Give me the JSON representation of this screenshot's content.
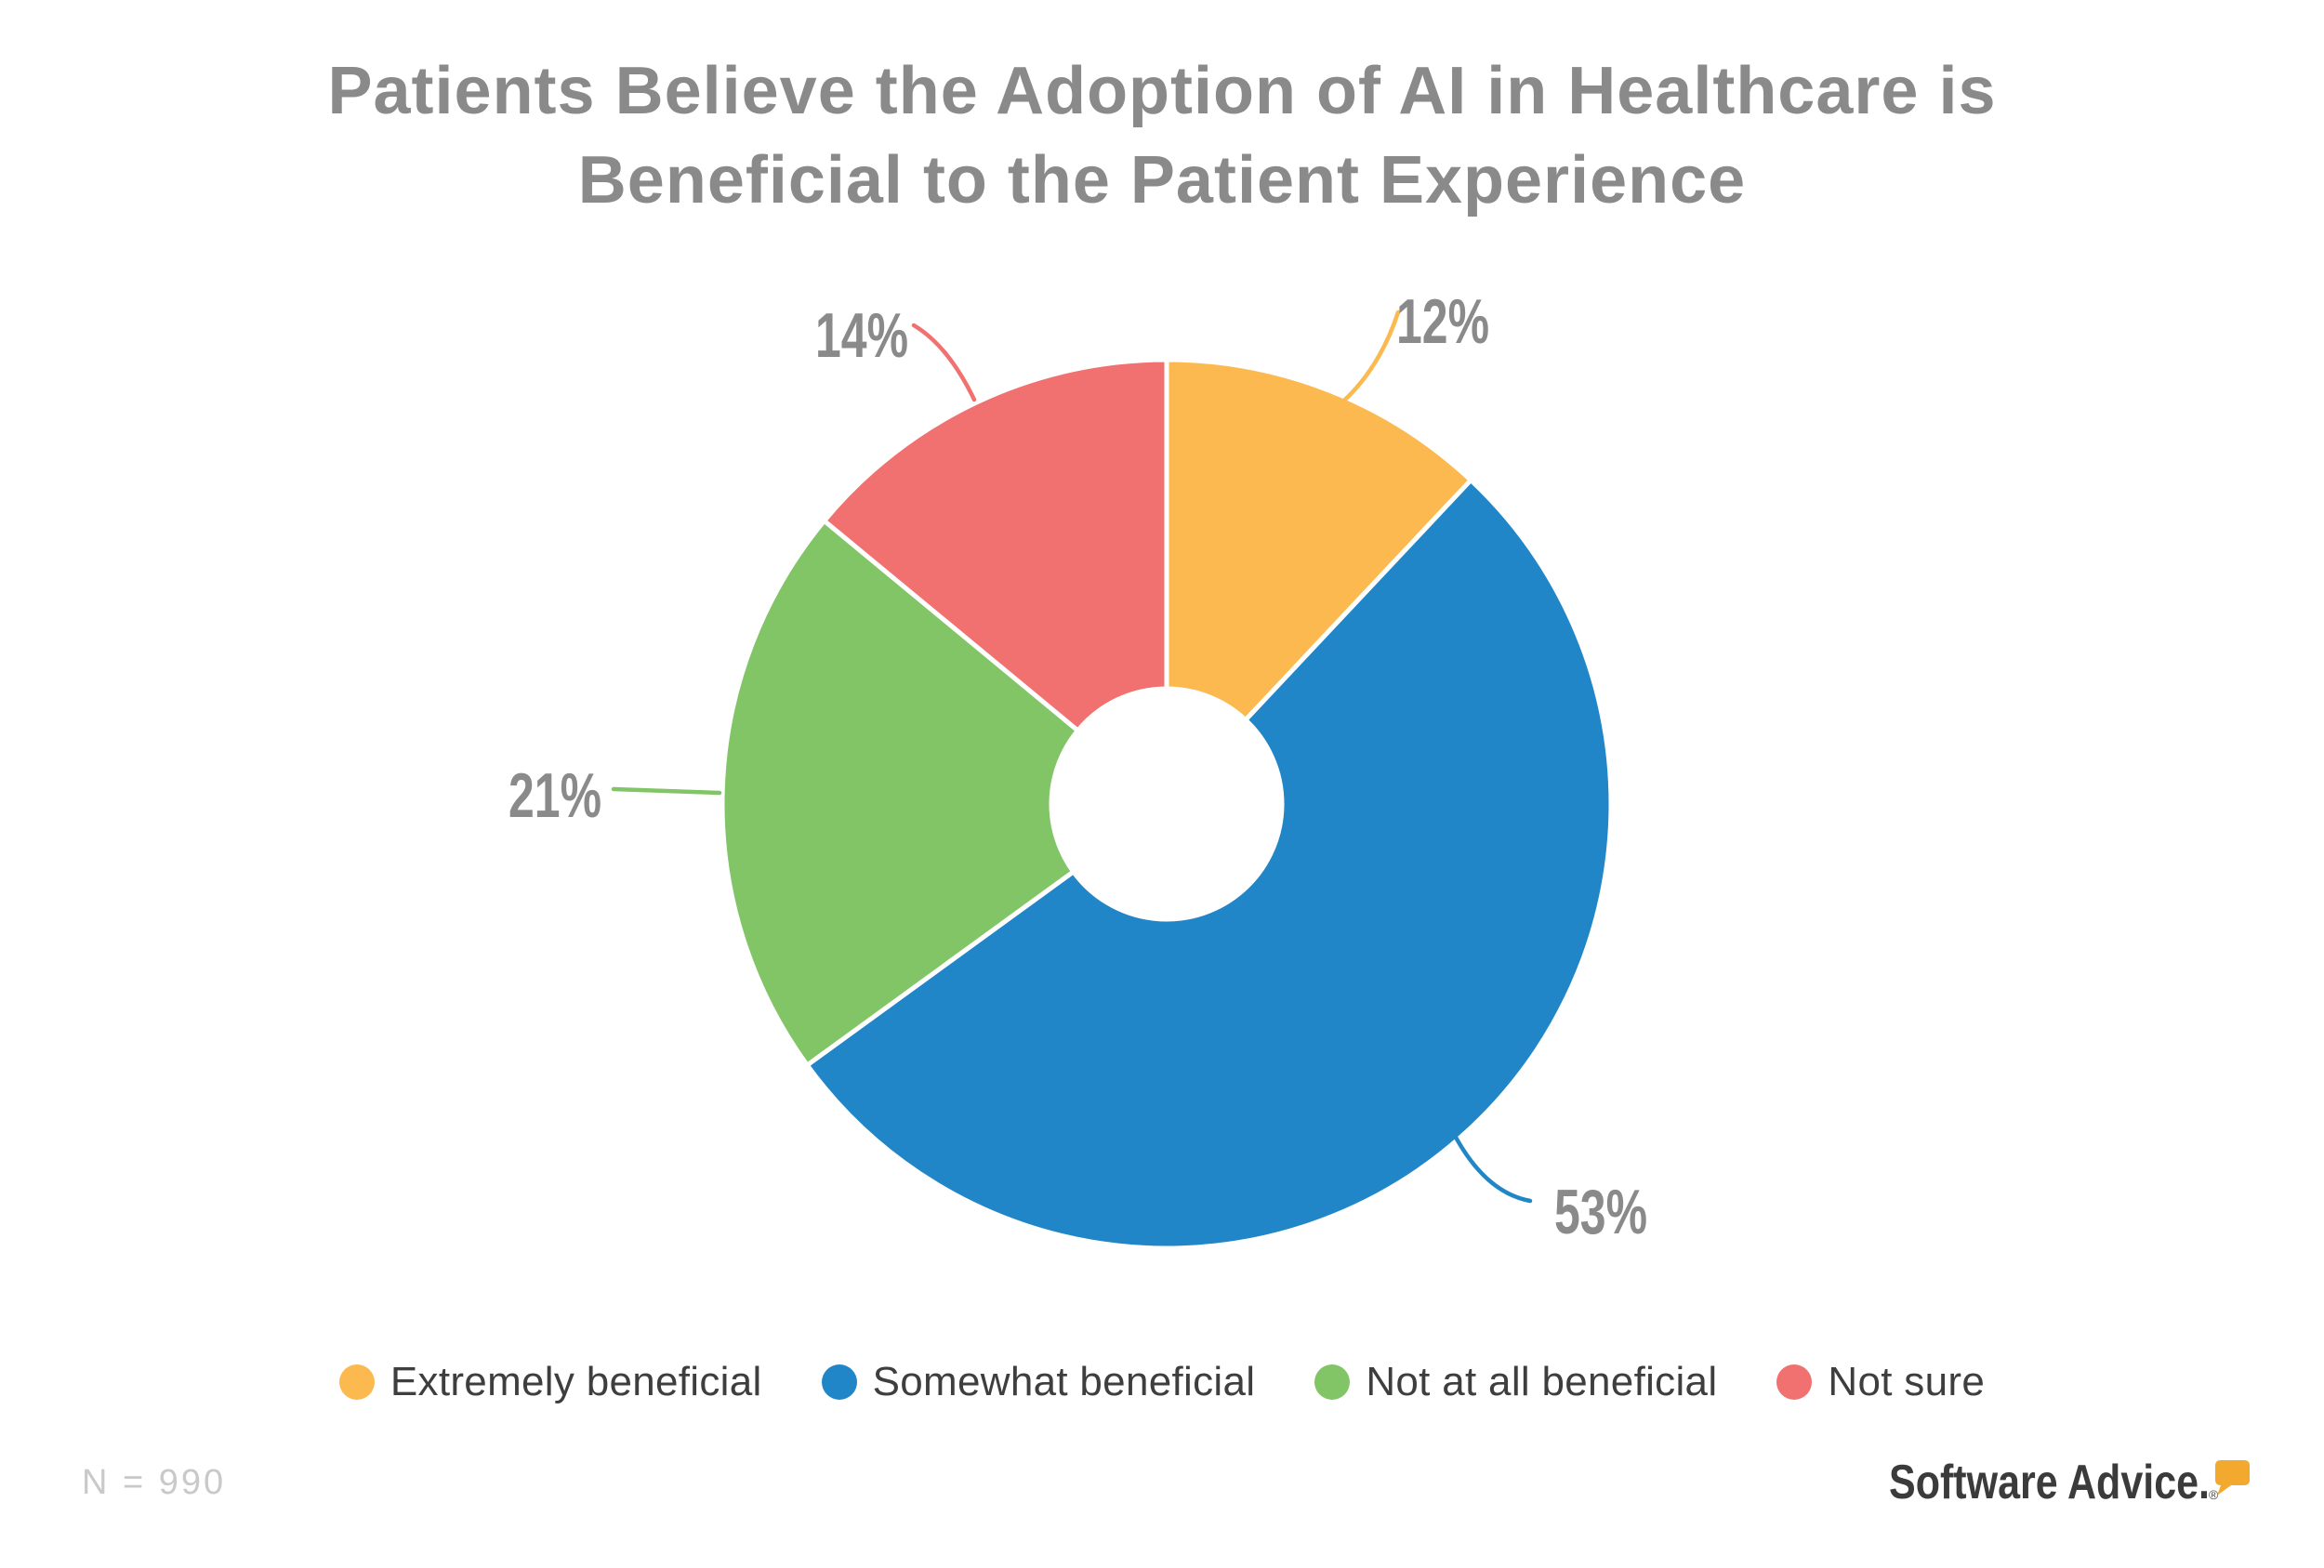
{
  "title": {
    "line1": "Patients Believe the Adoption of AI in Healthcare is",
    "line2": "Beneficial to the Patient Experience",
    "color": "#8A8A8A"
  },
  "chart_data": {
    "type": "pie",
    "subtype": "donut",
    "title": "Patients Believe the Adoption of AI in Healthcare is Beneficial to the Patient Experience",
    "categories": [
      "Extremely beneficial",
      "Somewhat beneficial",
      "Not at all beneficial",
      "Not sure"
    ],
    "values": [
      12,
      53,
      21,
      14
    ],
    "value_labels": [
      "12%",
      "53%",
      "21%",
      "14%"
    ],
    "unit": "percent",
    "colors": [
      "#FBB950",
      "#2186C8",
      "#82C566",
      "#F07170"
    ],
    "start_angle_deg": 0,
    "direction": "clockwise",
    "inner_radius_ratio": 0.26,
    "slice_gap_color": "#FFFFFF",
    "label_color": "#8A8A8A",
    "legend_position": "bottom",
    "annotation": "N = 990"
  },
  "legend": {
    "text_color": "#3E3E3E"
  },
  "footer": {
    "sample_size": "N = 990",
    "brand": "Software Advice.",
    "registered_mark": "®",
    "brand_color": "#3B3B3B",
    "brand_accent": "#F2A92E"
  }
}
